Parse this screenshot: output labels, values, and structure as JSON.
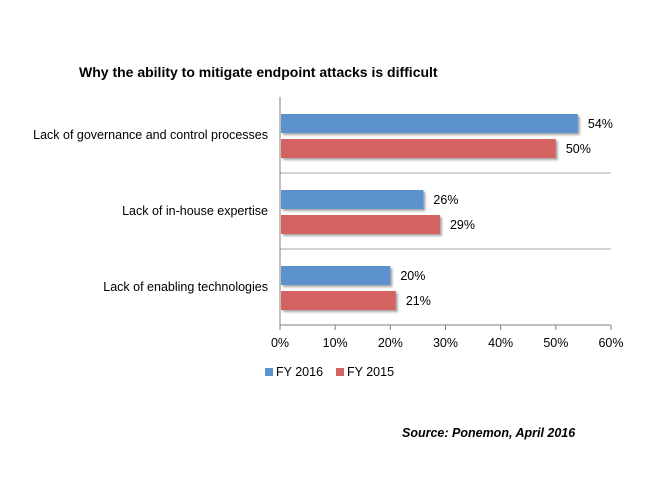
{
  "chart_data": {
    "type": "bar",
    "orientation": "horizontal",
    "title": "Why the ability to mitigate endpoint attacks is difficult",
    "categories": [
      "Lack of governance and control processes",
      "Lack of in-house expertise",
      "Lack of enabling technologies"
    ],
    "series": [
      {
        "name": "FY 2016",
        "values": [
          54,
          26,
          20
        ],
        "labels": [
          "54%",
          "26%",
          "20%"
        ],
        "color": "#5b93cf"
      },
      {
        "name": "FY 2015",
        "values": [
          50,
          29,
          21
        ],
        "labels": [
          "50%",
          "29%",
          "21%"
        ],
        "color": "#d46462"
      }
    ],
    "xlim": [
      0,
      60
    ],
    "xticks": [
      {
        "value": 0,
        "label": "0%"
      },
      {
        "value": 10,
        "label": "10%"
      },
      {
        "value": 20,
        "label": "20%"
      },
      {
        "value": 30,
        "label": "30%"
      },
      {
        "value": 40,
        "label": "40%"
      },
      {
        "value": 50,
        "label": "50%"
      },
      {
        "value": 60,
        "label": "60%"
      }
    ],
    "grid": "category separators",
    "legend": "bottom-left"
  },
  "source": "Source: Ponemon, April 2016"
}
